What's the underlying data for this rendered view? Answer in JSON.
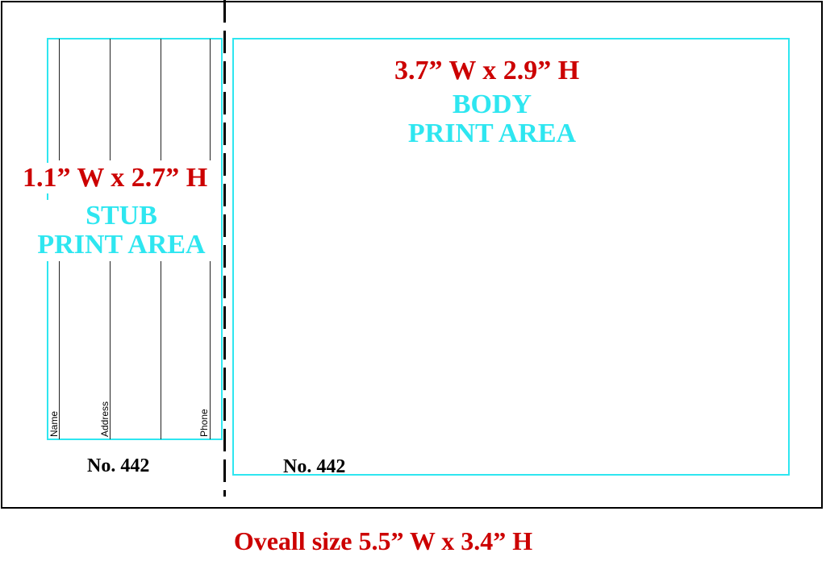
{
  "body": {
    "dimension": "3.7” W x 2.9” H",
    "label_line1": "BODY",
    "label_line2": "PRINT AREA",
    "number": "No.  442"
  },
  "stub": {
    "dimension": "1.1” W x 2.7” H",
    "label_line1": "STUB",
    "label_line2": "PRINT AREA",
    "number": "No.  442",
    "fields": [
      "Name",
      "Address",
      "Phone"
    ]
  },
  "overall": "Oveall size 5.5” W x 3.4” H",
  "colors": {
    "dimension": "#cc0000",
    "print_area": "#2ee6f0",
    "outline": "#000000"
  }
}
